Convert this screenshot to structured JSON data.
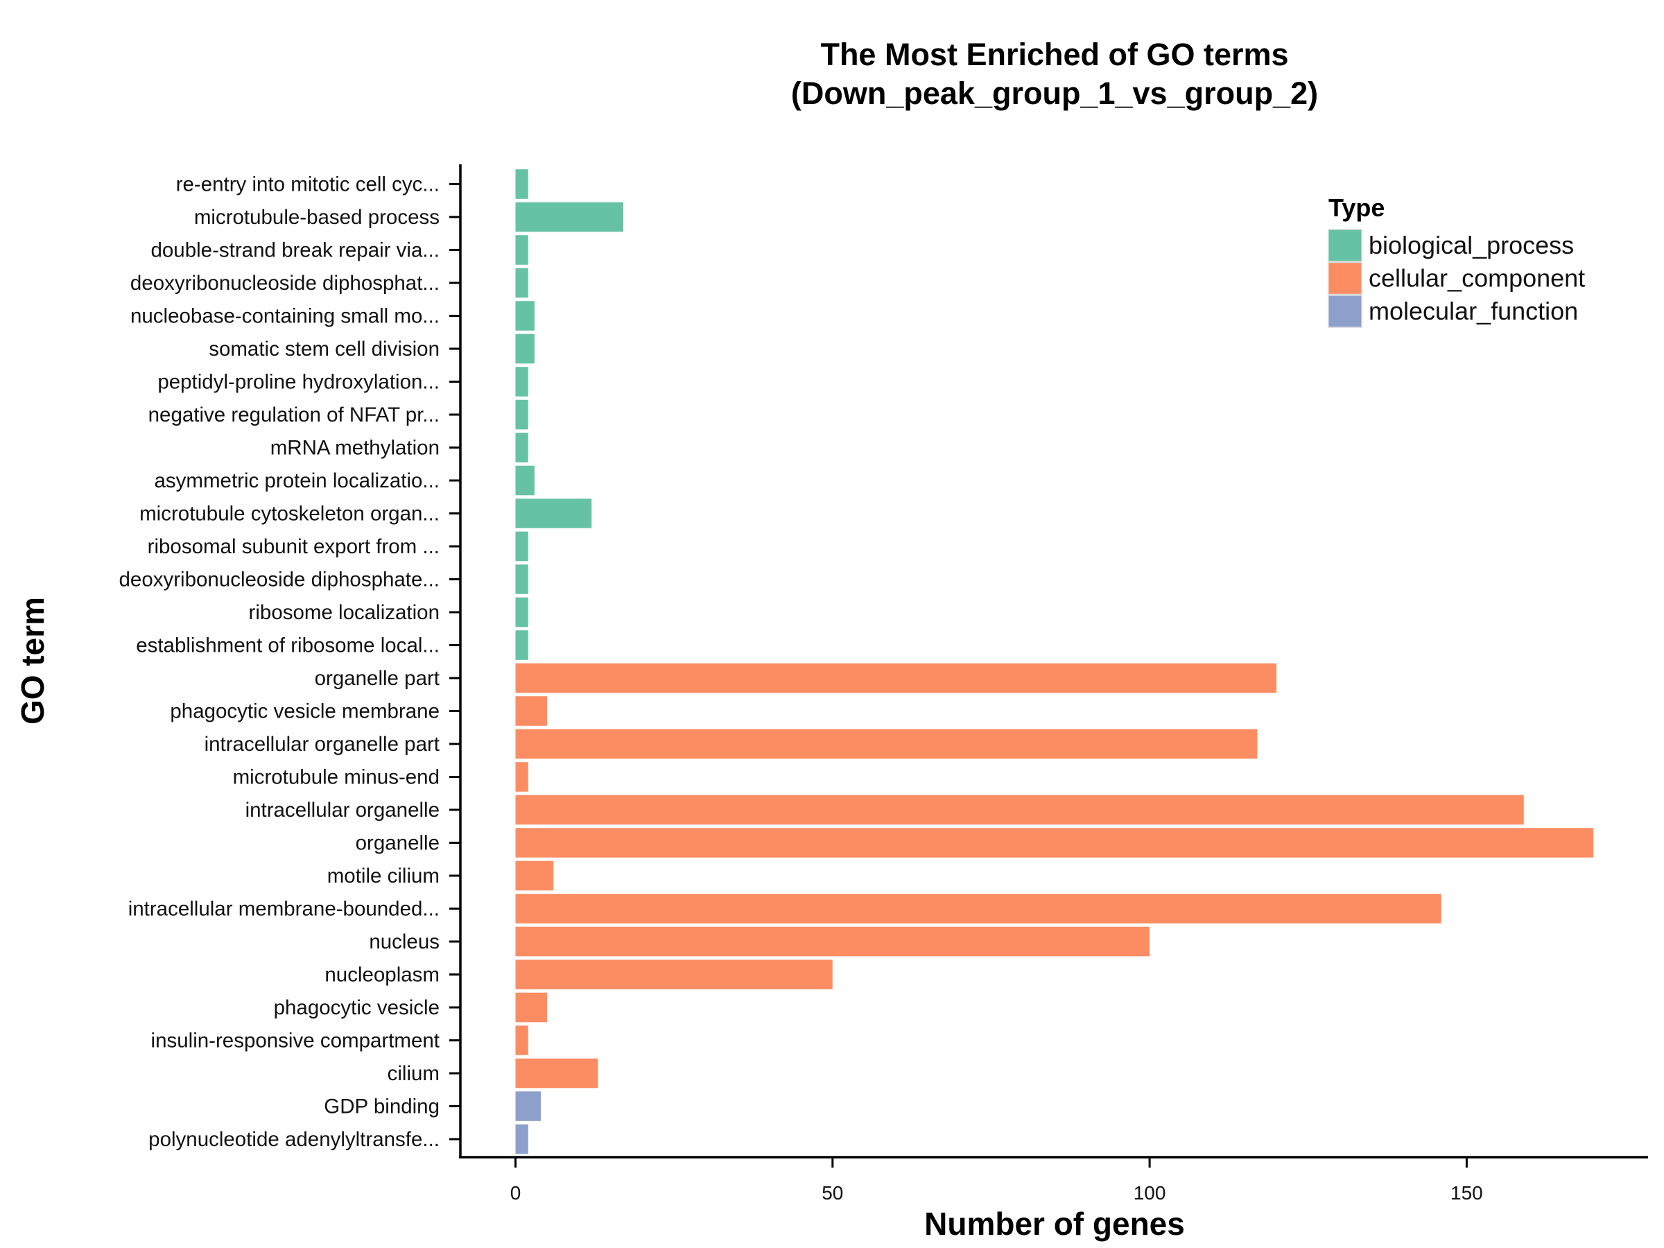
{
  "chart_data": {
    "type": "bar",
    "orientation": "horizontal",
    "title_line1": "The Most Enriched of GO terms",
    "title_line2": "(Down_peak_group_1_vs_group_2)",
    "xlabel": "Number of genes",
    "ylabel": "GO term",
    "xlim": [
      -8.5,
      178
    ],
    "xticks": [
      0,
      50,
      100,
      150
    ],
    "grid": false,
    "legend": {
      "title": "Type",
      "position": "top-right",
      "entries": [
        {
          "name": "biological_process",
          "color": "#66c2a5"
        },
        {
          "name": "cellular_component",
          "color": "#fc8d62"
        },
        {
          "name": "molecular_function",
          "color": "#8da0cb"
        }
      ]
    },
    "categories": [
      "re-entry into mitotic cell cyc...",
      "microtubule-based process",
      "double-strand break repair via...",
      "deoxyribonucleoside diphosphat...",
      "nucleobase-containing small mo...",
      "somatic stem cell division",
      "peptidyl-proline hydroxylation...",
      "negative regulation of NFAT pr...",
      "mRNA methylation",
      "asymmetric protein localizatio...",
      "microtubule cytoskeleton organ...",
      "ribosomal subunit export from ...",
      "deoxyribonucleoside diphosphate...",
      "ribosome localization",
      "establishment of ribosome local...",
      "organelle part",
      "phagocytic vesicle membrane",
      "intracellular organelle part",
      "microtubule minus-end",
      "intracellular organelle",
      "organelle",
      "motile cilium",
      "intracellular membrane-bounded...",
      "nucleus",
      "nucleoplasm",
      "phagocytic vesicle",
      "insulin-responsive compartment",
      "cilium",
      "GDP binding",
      "polynucleotide adenylyltransfe..."
    ],
    "values": [
      2,
      17,
      2,
      2,
      3,
      3,
      2,
      2,
      2,
      3,
      12,
      2,
      2,
      2,
      2,
      120,
      5,
      117,
      2,
      159,
      170,
      6,
      146,
      100,
      50,
      5,
      2,
      13,
      4,
      2
    ],
    "types": [
      "biological_process",
      "biological_process",
      "biological_process",
      "biological_process",
      "biological_process",
      "biological_process",
      "biological_process",
      "biological_process",
      "biological_process",
      "biological_process",
      "biological_process",
      "biological_process",
      "biological_process",
      "biological_process",
      "biological_process",
      "cellular_component",
      "cellular_component",
      "cellular_component",
      "cellular_component",
      "cellular_component",
      "cellular_component",
      "cellular_component",
      "cellular_component",
      "cellular_component",
      "cellular_component",
      "cellular_component",
      "cellular_component",
      "cellular_component",
      "molecular_function",
      "molecular_function"
    ]
  }
}
